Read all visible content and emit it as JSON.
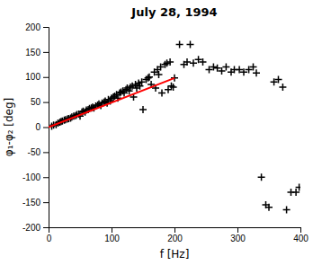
{
  "chart_data": {
    "type": "scatter",
    "title": "July 28, 1994",
    "xlabel": "f [Hz]",
    "ylabel": "φ₁-φ₂ [deg]",
    "xlim": [
      0,
      400
    ],
    "ylim": [
      -200,
      200
    ],
    "xticks": [
      0,
      100,
      200,
      300,
      400
    ],
    "yticks": [
      -200,
      -150,
      -100,
      -50,
      0,
      50,
      100,
      150,
      200
    ],
    "grid": false,
    "series": [
      {
        "type": "scatter",
        "marker": "plus",
        "color": "black",
        "x": [
          5,
          8,
          12,
          15,
          18,
          20,
          22,
          25,
          27,
          30,
          32,
          35,
          37,
          40,
          43,
          45,
          48,
          50,
          53,
          55,
          58,
          60,
          63,
          65,
          68,
          70,
          72,
          75,
          78,
          80,
          83,
          85,
          88,
          90,
          93,
          95,
          98,
          100,
          103,
          105,
          108,
          110,
          113,
          115,
          118,
          120,
          123,
          125,
          128,
          130,
          133,
          135,
          138,
          140,
          143,
          145,
          148,
          150,
          155,
          158,
          160,
          163,
          168,
          170,
          173,
          175,
          178,
          180,
          185,
          188,
          190,
          193,
          195,
          198,
          200,
          208,
          215,
          220,
          225,
          230,
          238,
          245,
          255,
          262,
          268,
          275,
          282,
          290,
          295,
          303,
          310,
          318,
          325,
          330,
          338,
          345,
          350,
          358,
          365,
          372,
          378,
          385,
          393,
          398
        ],
        "values": [
          2,
          4,
          5,
          8,
          10,
          11,
          12,
          14,
          15,
          16,
          17,
          18,
          20,
          22,
          23,
          25,
          26,
          22,
          30,
          32,
          30,
          34,
          35,
          37,
          38,
          40,
          38,
          42,
          44,
          46,
          43,
          48,
          50,
          52,
          48,
          55,
          52,
          58,
          60,
          62,
          65,
          58,
          68,
          70,
          72,
          68,
          75,
          78,
          72,
          80,
          82,
          60,
          85,
          78,
          88,
          82,
          90,
          35,
          95,
          98,
          100,
          85,
          110,
          78,
          115,
          105,
          120,
          68,
          125,
          128,
          75,
          130,
          82,
          80,
          98,
          165,
          125,
          130,
          165,
          128,
          135,
          130,
          115,
          120,
          118,
          112,
          120,
          110,
          115,
          115,
          110,
          115,
          120,
          108,
          -100,
          -155,
          -160,
          90,
          95,
          80,
          -165,
          -130,
          -130,
          -120
        ]
      },
      {
        "type": "line",
        "color": "red",
        "x": [
          0,
          200
        ],
        "values": [
          0,
          98
        ]
      }
    ]
  }
}
